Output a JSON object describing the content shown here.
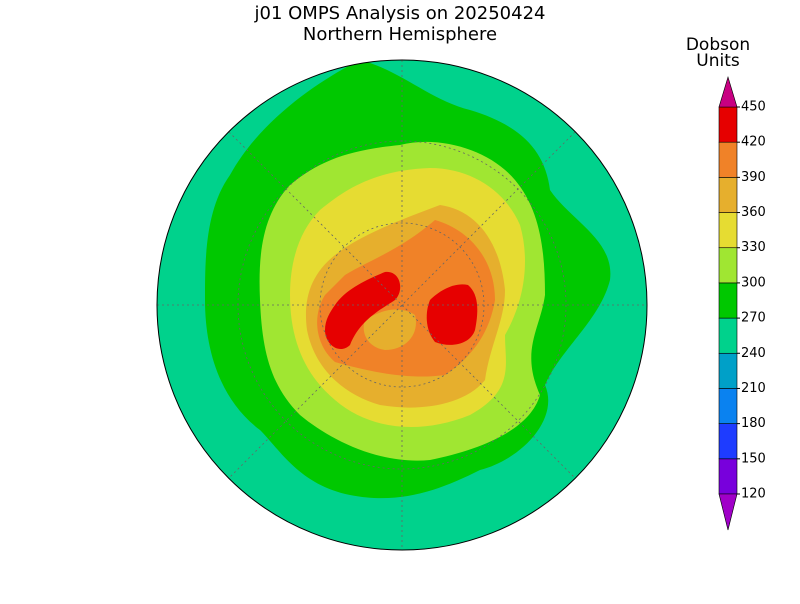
{
  "title": "j01 OMPS Analysis on 20250424",
  "subtitle": "Northern Hemisphere",
  "colorbar": {
    "title_lines": [
      "Dobson",
      "Units"
    ],
    "levels": [
      120,
      150,
      180,
      210,
      240,
      270,
      300,
      330,
      360,
      390,
      420,
      450
    ],
    "colors": [
      "#a000c8",
      "#7800dc",
      "#1e3cff",
      "#0a82f0",
      "#00a0c8",
      "#00d28c",
      "#00c800",
      "#a0e632",
      "#e6dc32",
      "#e6af2d",
      "#f08228",
      "#e60000",
      "#c80082"
    ]
  }
}
